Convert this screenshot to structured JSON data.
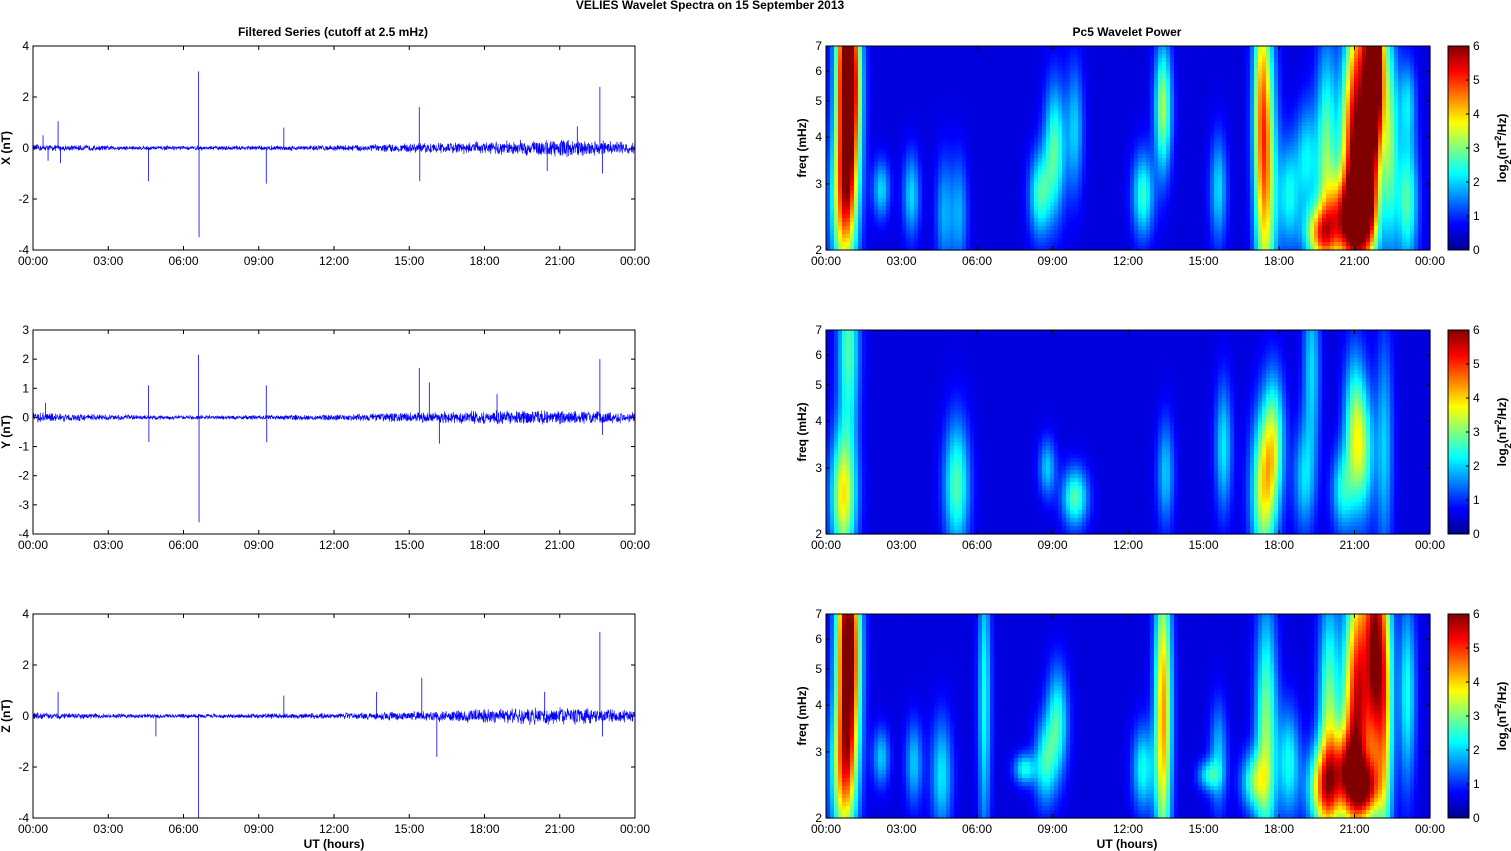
{
  "figure": {
    "title": "VELIES Wavelet Spectra on 15 September 2013",
    "left_title": "Filtered Series (cutoff at 2.5 mHz)",
    "right_title": "Pc5 Wavelet Power",
    "xlabel": "UT (hours)",
    "freq_label": "freq (mHz)",
    "colorbar_label_main": "log",
    "colorbar_label_sub": "2",
    "colorbar_label_rest": "(nT",
    "colorbar_label_sup": "2",
    "colorbar_label_end": "/Hz)"
  },
  "chart_data": [
    {
      "type": "line",
      "title": "Filtered Series (cutoff at 2.5 mHz)",
      "ylabel": "X (nT)",
      "xlabel": "",
      "xlim": [
        0,
        24
      ],
      "ylim": [
        -4,
        4
      ],
      "xticks": [
        "00:00",
        "03:00",
        "06:00",
        "09:00",
        "12:00",
        "15:00",
        "18:00",
        "21:00",
        "00:00"
      ],
      "yticks": [
        "-4",
        "-2",
        "0",
        "2",
        "4"
      ],
      "yticks_values": [
        -4,
        -2,
        0,
        2,
        4
      ],
      "color": "#0000ff",
      "noise": [
        [
          0,
          0.12
        ],
        [
          3,
          0.08
        ],
        [
          6,
          0.07
        ],
        [
          9,
          0.08
        ],
        [
          12,
          0.1
        ],
        [
          15,
          0.15
        ],
        [
          18,
          0.22
        ],
        [
          21,
          0.3
        ],
        [
          24,
          0.2
        ]
      ],
      "spikes": [
        [
          0.4,
          0.5
        ],
        [
          0.6,
          -0.5
        ],
        [
          1.0,
          1.05
        ],
        [
          1.1,
          -0.6
        ],
        [
          4.6,
          -1.3
        ],
        [
          6.6,
          3.0
        ],
        [
          6.62,
          -3.5
        ],
        [
          9.3,
          -1.4
        ],
        [
          10.0,
          0.8
        ],
        [
          15.4,
          1.6
        ],
        [
          15.42,
          -1.3
        ],
        [
          20.5,
          -0.9
        ],
        [
          21.7,
          0.85
        ],
        [
          22.6,
          2.4
        ],
        [
          22.7,
          -1.0
        ]
      ]
    },
    {
      "type": "line",
      "ylabel": "Y (nT)",
      "xlabel": "",
      "xlim": [
        0,
        24
      ],
      "ylim": [
        -4,
        3
      ],
      "xticks": [
        "00:00",
        "03:00",
        "06:00",
        "09:00",
        "12:00",
        "15:00",
        "18:00",
        "21:00",
        "00:00"
      ],
      "yticks": [
        "-4",
        "-3",
        "-2",
        "-1",
        "0",
        "1",
        "2",
        "3"
      ],
      "yticks_values": [
        -4,
        -3,
        -2,
        -1,
        0,
        1,
        2,
        3
      ],
      "color": "#0000ff",
      "noise": [
        [
          0,
          0.15
        ],
        [
          3,
          0.08
        ],
        [
          6,
          0.06
        ],
        [
          9,
          0.07
        ],
        [
          12,
          0.09
        ],
        [
          15,
          0.15
        ],
        [
          18,
          0.2
        ],
        [
          21,
          0.22
        ],
        [
          24,
          0.15
        ]
      ],
      "spikes": [
        [
          0.5,
          0.5
        ],
        [
          4.6,
          1.1
        ],
        [
          4.62,
          -0.85
        ],
        [
          6.6,
          2.15
        ],
        [
          6.62,
          -3.6
        ],
        [
          9.3,
          1.1
        ],
        [
          9.32,
          -0.85
        ],
        [
          15.4,
          1.7
        ],
        [
          15.8,
          1.2
        ],
        [
          16.2,
          -0.9
        ],
        [
          18.5,
          0.8
        ],
        [
          22.6,
          2.0
        ],
        [
          22.7,
          -0.6
        ]
      ]
    },
    {
      "type": "line",
      "ylabel": "Z (nT)",
      "xlabel": "UT (hours)",
      "xlim": [
        0,
        24
      ],
      "ylim": [
        -4,
        4
      ],
      "xticks": [
        "00:00",
        "03:00",
        "06:00",
        "09:00",
        "12:00",
        "15:00",
        "18:00",
        "21:00",
        "00:00"
      ],
      "yticks": [
        "-4",
        "-2",
        "0",
        "2",
        "4"
      ],
      "yticks_values": [
        -4,
        -2,
        0,
        2,
        4
      ],
      "color": "#0000ff",
      "noise": [
        [
          0,
          0.12
        ],
        [
          3,
          0.08
        ],
        [
          6,
          0.07
        ],
        [
          9,
          0.08
        ],
        [
          12,
          0.1
        ],
        [
          15,
          0.15
        ],
        [
          18,
          0.25
        ],
        [
          21,
          0.3
        ],
        [
          24,
          0.2
        ]
      ],
      "spikes": [
        [
          1.0,
          0.95
        ],
        [
          4.9,
          -0.8
        ],
        [
          6.6,
          -4.0
        ],
        [
          10.0,
          0.8
        ],
        [
          13.7,
          0.95
        ],
        [
          15.5,
          1.5
        ],
        [
          16.1,
          -1.6
        ],
        [
          20.4,
          0.95
        ],
        [
          22.6,
          3.3
        ],
        [
          22.7,
          -0.8
        ]
      ]
    },
    {
      "type": "heatmap",
      "title": "Pc5 Wavelet Power",
      "ylabel": "freq (mHz)",
      "xlabel": "",
      "xlim": [
        0,
        24
      ],
      "ylim": [
        2,
        7
      ],
      "yscale": "log",
      "xticks": [
        "00:00",
        "03:00",
        "06:00",
        "09:00",
        "12:00",
        "15:00",
        "18:00",
        "21:00",
        "00:00"
      ],
      "yticks": [
        "2",
        "3",
        "4",
        "5",
        "6",
        "7"
      ],
      "yticks_values": [
        2,
        3,
        4,
        5,
        6,
        7
      ],
      "clim": [
        0,
        6
      ],
      "colorbar_ticks": [
        "0",
        "1",
        "2",
        "3",
        "4",
        "5",
        "6"
      ],
      "blobs": [
        [
          0.7,
          2.6,
          0.06,
          1.6,
          3.0
        ],
        [
          0.8,
          6.0,
          0.05,
          2.2,
          4.2
        ],
        [
          1.0,
          5.5,
          0.05,
          2.0,
          3.4
        ],
        [
          2.2,
          2.9,
          0.04,
          1.2,
          1.5
        ],
        [
          3.4,
          2.8,
          0.04,
          1.3,
          1.5
        ],
        [
          4.7,
          2.5,
          0.04,
          0.7,
          1.2
        ],
        [
          5.3,
          2.5,
          0.04,
          0.7,
          1.2
        ],
        [
          7.8,
          2.6,
          0.05,
          1.0,
          1.4
        ],
        [
          8.5,
          2.8,
          0.05,
          1.3,
          2.0
        ],
        [
          9.1,
          3.7,
          0.05,
          1.5,
          2.2
        ],
        [
          10.0,
          2.3,
          0.07,
          1.0,
          3.0
        ],
        [
          9.9,
          4.2,
          0.04,
          1.5,
          1.4
        ],
        [
          12.6,
          2.8,
          0.05,
          1.3,
          2.0
        ],
        [
          13.4,
          4.8,
          0.04,
          1.5,
          2.7
        ],
        [
          13.9,
          2.5,
          0.05,
          1.0,
          1.4
        ],
        [
          15.2,
          2.5,
          0.05,
          1.0,
          1.4
        ],
        [
          15.6,
          2.9,
          0.04,
          1.4,
          1.5
        ],
        [
          17.5,
          3.0,
          0.05,
          2.5,
          3.0
        ],
        [
          17.3,
          5.2,
          0.04,
          2.2,
          2.4
        ],
        [
          18.4,
          2.8,
          0.05,
          1.4,
          1.7
        ],
        [
          19.1,
          3.5,
          0.05,
          1.4,
          1.6
        ],
        [
          19.6,
          2.2,
          0.07,
          1.2,
          3.2
        ],
        [
          19.9,
          3.5,
          0.05,
          2.0,
          2.4
        ],
        [
          20.5,
          2.4,
          0.07,
          1.3,
          3.3
        ],
        [
          20.8,
          3.5,
          0.05,
          2.0,
          3.0
        ],
        [
          21.2,
          4.2,
          0.05,
          3.0,
          4.0
        ],
        [
          21.4,
          2.5,
          0.06,
          1.3,
          3.0
        ],
        [
          21.7,
          5.5,
          0.04,
          2.5,
          4.6
        ],
        [
          21.9,
          6.4,
          0.04,
          1.8,
          3.8
        ],
        [
          22.4,
          4.0,
          0.04,
          2.0,
          2.4
        ],
        [
          23.1,
          2.7,
          0.05,
          1.5,
          2.2
        ],
        [
          23.1,
          5.0,
          0.04,
          1.3,
          1.4
        ]
      ]
    },
    {
      "type": "heatmap",
      "ylabel": "freq (mHz)",
      "xlabel": "",
      "xlim": [
        0,
        24
      ],
      "ylim": [
        2,
        7
      ],
      "yscale": "log",
      "xticks": [
        "00:00",
        "03:00",
        "06:00",
        "09:00",
        "12:00",
        "15:00",
        "18:00",
        "21:00",
        "00:00"
      ],
      "yticks": [
        "2",
        "3",
        "4",
        "5",
        "6",
        "7"
      ],
      "yticks_values": [
        2,
        3,
        4,
        5,
        6,
        7
      ],
      "clim": [
        0,
        6
      ],
      "colorbar_ticks": [
        "0",
        "1",
        "2",
        "3",
        "4",
        "5",
        "6"
      ],
      "blobs": [
        [
          0.7,
          2.5,
          0.06,
          1.5,
          3.2
        ],
        [
          0.9,
          6.3,
          0.05,
          1.8,
          2.2
        ],
        [
          2.7,
          2.5,
          0.05,
          1.0,
          1.6
        ],
        [
          3.5,
          2.4,
          0.05,
          1.0,
          1.6
        ],
        [
          5.2,
          2.7,
          0.06,
          1.5,
          2.2
        ],
        [
          7.2,
          3.7,
          0.03,
          1.0,
          1.0
        ],
        [
          8.8,
          3.0,
          0.04,
          1.2,
          1.4
        ],
        [
          9.9,
          2.5,
          0.06,
          1.2,
          2.2
        ],
        [
          11.8,
          2.4,
          0.05,
          1.0,
          1.3
        ],
        [
          13.5,
          2.9,
          0.04,
          1.4,
          1.4
        ],
        [
          15.8,
          3.4,
          0.04,
          1.5,
          1.6
        ],
        [
          17.4,
          2.6,
          0.06,
          1.6,
          3.0
        ],
        [
          17.8,
          3.6,
          0.05,
          1.5,
          2.2
        ],
        [
          19.0,
          2.8,
          0.05,
          1.4,
          1.4
        ],
        [
          19.3,
          5.5,
          0.04,
          1.8,
          1.5
        ],
        [
          20.5,
          2.6,
          0.05,
          1.3,
          1.6
        ],
        [
          21.0,
          3.8,
          0.05,
          1.6,
          2.3
        ],
        [
          21.4,
          3.3,
          0.05,
          1.5,
          1.8
        ],
        [
          22.2,
          3.4,
          0.04,
          2.0,
          1.4
        ]
      ]
    },
    {
      "type": "heatmap",
      "ylabel": "freq (mHz)",
      "xlabel": "UT (hours)",
      "xlim": [
        0,
        24
      ],
      "ylim": [
        2,
        7
      ],
      "yscale": "log",
      "xticks": [
        "00:00",
        "03:00",
        "06:00",
        "09:00",
        "12:00",
        "15:00",
        "18:00",
        "21:00",
        "00:00"
      ],
      "yticks": [
        "2",
        "3",
        "4",
        "5",
        "6",
        "7"
      ],
      "yticks_values": [
        2,
        3,
        4,
        5,
        6,
        7
      ],
      "clim": [
        0,
        6
      ],
      "colorbar_ticks": [
        "0",
        "1",
        "2",
        "3",
        "4",
        "5",
        "6"
      ],
      "blobs": [
        [
          0.7,
          2.6,
          0.06,
          1.6,
          3.0
        ],
        [
          0.8,
          6.0,
          0.05,
          2.2,
          3.6
        ],
        [
          1.0,
          5.5,
          0.05,
          2.0,
          3.0
        ],
        [
          2.2,
          2.9,
          0.04,
          1.2,
          1.4
        ],
        [
          3.5,
          2.8,
          0.04,
          1.3,
          1.4
        ],
        [
          4.6,
          2.6,
          0.05,
          0.7,
          1.6
        ],
        [
          6.3,
          4.2,
          0.03,
          2.5,
          1.8
        ],
        [
          7.9,
          2.7,
          0.05,
          1.1,
          1.8
        ],
        [
          8.7,
          2.8,
          0.05,
          1.3,
          1.8
        ],
        [
          9.2,
          3.6,
          0.05,
          1.4,
          2.0
        ],
        [
          10.0,
          2.3,
          0.07,
          1.0,
          3.2
        ],
        [
          12.6,
          2.7,
          0.05,
          1.3,
          1.8
        ],
        [
          13.4,
          3.8,
          0.04,
          2.6,
          3.8
        ],
        [
          13.3,
          2.3,
          0.06,
          1.0,
          3.0
        ],
        [
          15.2,
          2.6,
          0.05,
          1.1,
          1.6
        ],
        [
          15.6,
          2.9,
          0.04,
          1.4,
          1.4
        ],
        [
          17.0,
          2.5,
          0.06,
          1.2,
          2.0
        ],
        [
          17.5,
          3.3,
          0.05,
          2.2,
          2.6
        ],
        [
          18.4,
          2.8,
          0.05,
          1.4,
          1.8
        ],
        [
          19.7,
          2.4,
          0.07,
          1.3,
          3.0
        ],
        [
          20.0,
          3.5,
          0.05,
          2.2,
          2.6
        ],
        [
          20.6,
          2.6,
          0.07,
          1.3,
          3.2
        ],
        [
          20.9,
          3.6,
          0.05,
          2.2,
          3.0
        ],
        [
          21.3,
          4.5,
          0.05,
          2.5,
          3.4
        ],
        [
          21.5,
          2.4,
          0.06,
          1.2,
          3.0
        ],
        [
          21.8,
          5.8,
          0.04,
          2.2,
          4.2
        ],
        [
          22.2,
          4.2,
          0.04,
          2.5,
          3.6
        ],
        [
          22.3,
          2.3,
          0.05,
          1.0,
          2.2
        ],
        [
          23.1,
          4.3,
          0.04,
          1.8,
          1.8
        ]
      ]
    }
  ]
}
